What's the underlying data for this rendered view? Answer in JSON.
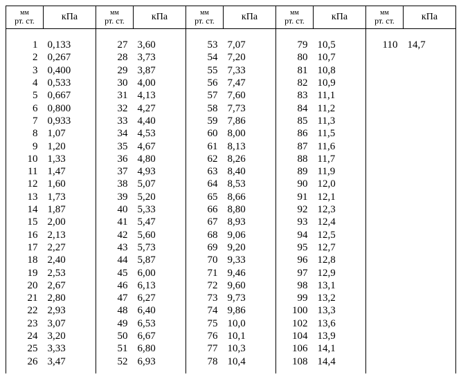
{
  "header": {
    "mm_line1": "мм",
    "mm_line2": "рт. ст.",
    "kpa": "кПа"
  },
  "pairs": [
    [
      [
        "1",
        "0,133"
      ],
      [
        "2",
        "0,267"
      ],
      [
        "3",
        "0,400"
      ],
      [
        "4",
        "0,533"
      ],
      [
        "5",
        "0,667"
      ],
      [
        "6",
        "0,800"
      ],
      [
        "7",
        "0,933"
      ],
      [
        "8",
        "1,07"
      ],
      [
        "9",
        "1,20"
      ],
      [
        "10",
        "1,33"
      ],
      [
        "11",
        "1,47"
      ],
      [
        "12",
        "1,60"
      ],
      [
        "13",
        "1,73"
      ],
      [
        "14",
        "1,87"
      ],
      [
        "15",
        "2,00"
      ],
      [
        "16",
        "2,13"
      ],
      [
        "17",
        "2,27"
      ],
      [
        "18",
        "2,40"
      ],
      [
        "19",
        "2,53"
      ],
      [
        "20",
        "2,67"
      ],
      [
        "21",
        "2,80"
      ],
      [
        "22",
        "2,93"
      ],
      [
        "23",
        "3,07"
      ],
      [
        "24",
        "3,20"
      ],
      [
        "25",
        "3,33"
      ],
      [
        "26",
        "3,47"
      ]
    ],
    [
      [
        "27",
        "3,60"
      ],
      [
        "28",
        "3,73"
      ],
      [
        "29",
        "3,87"
      ],
      [
        "30",
        "4,00"
      ],
      [
        "31",
        "4,13"
      ],
      [
        "32",
        "4,27"
      ],
      [
        "33",
        "4,40"
      ],
      [
        "34",
        "4,53"
      ],
      [
        "35",
        "4,67"
      ],
      [
        "36",
        "4,80"
      ],
      [
        "37",
        "4,93"
      ],
      [
        "38",
        "5,07"
      ],
      [
        "39",
        "5,20"
      ],
      [
        "40",
        "5,33"
      ],
      [
        "41",
        "5,47"
      ],
      [
        "42",
        "5,60"
      ],
      [
        "43",
        "5,73"
      ],
      [
        "44",
        "5,87"
      ],
      [
        "45",
        "6,00"
      ],
      [
        "46",
        "6,13"
      ],
      [
        "47",
        "6,27"
      ],
      [
        "48",
        "6,40"
      ],
      [
        "49",
        "6,53"
      ],
      [
        "50",
        "6,67"
      ],
      [
        "51",
        "6,80"
      ],
      [
        "52",
        "6,93"
      ]
    ],
    [
      [
        "53",
        "7,07"
      ],
      [
        "54",
        "7,20"
      ],
      [
        "55",
        "7,33"
      ],
      [
        "56",
        "7,47"
      ],
      [
        "57",
        "7,60"
      ],
      [
        "58",
        "7,73"
      ],
      [
        "59",
        "7,86"
      ],
      [
        "60",
        "8,00"
      ],
      [
        "61",
        "8,13"
      ],
      [
        "62",
        "8,26"
      ],
      [
        "63",
        "8,40"
      ],
      [
        "64",
        "8,53"
      ],
      [
        "65",
        "8,66"
      ],
      [
        "66",
        "8,80"
      ],
      [
        "67",
        "8,93"
      ],
      [
        "68",
        "9,06"
      ],
      [
        "69",
        "9,20"
      ],
      [
        "70",
        "9,33"
      ],
      [
        "71",
        "9,46"
      ],
      [
        "72",
        "9,60"
      ],
      [
        "73",
        "9,73"
      ],
      [
        "74",
        "9,86"
      ],
      [
        "75",
        "10,0"
      ],
      [
        "76",
        "10,1"
      ],
      [
        "77",
        "10,3"
      ],
      [
        "78",
        "10,4"
      ]
    ],
    [
      [
        "79",
        "10,5"
      ],
      [
        "80",
        "10,7"
      ],
      [
        "81",
        "10,8"
      ],
      [
        "82",
        "10,9"
      ],
      [
        "83",
        "11,1"
      ],
      [
        "84",
        "11,2"
      ],
      [
        "85",
        "11,3"
      ],
      [
        "86",
        "11,5"
      ],
      [
        "87",
        "11,6"
      ],
      [
        "88",
        "11,7"
      ],
      [
        "89",
        "11,9"
      ],
      [
        "90",
        "12,0"
      ],
      [
        "91",
        "12,1"
      ],
      [
        "92",
        "12,3"
      ],
      [
        "93",
        "12,4"
      ],
      [
        "94",
        "12,5"
      ],
      [
        "95",
        "12,7"
      ],
      [
        "96",
        "12,8"
      ],
      [
        "97",
        "12,9"
      ],
      [
        "98",
        "13,1"
      ],
      [
        "99",
        "13,2"
      ],
      [
        "100",
        "13,3"
      ],
      [
        "102",
        "13,6"
      ],
      [
        "104",
        "13,9"
      ],
      [
        "106",
        "14,1"
      ],
      [
        "108",
        "14,4"
      ]
    ],
    [
      [
        "110",
        "14,7"
      ]
    ]
  ]
}
